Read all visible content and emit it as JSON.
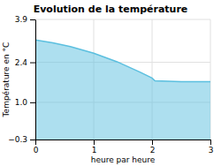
{
  "chart_data": {
    "type": "area",
    "title": "Evolution de la température",
    "xlabel": "heure par heure",
    "ylabel": "Température en °C",
    "x": [
      0,
      0.3,
      0.6,
      1.0,
      1.4,
      1.8,
      2.0,
      2.05,
      2.5,
      3.0
    ],
    "values": [
      3.18,
      3.08,
      2.95,
      2.72,
      2.42,
      2.05,
      1.85,
      1.75,
      1.72,
      1.72
    ],
    "color": "#5bbfdf",
    "xlim": [
      0,
      3
    ],
    "xticks": [
      0,
      1,
      2,
      3
    ],
    "ylim": [
      -0.3,
      3.9
    ],
    "yticks": [
      {
        "value": -0.3,
        "label": "−0.3"
      },
      {
        "value": 1.0,
        "label": "1.0"
      },
      2.4,
      3.9
    ],
    "grid": true
  }
}
